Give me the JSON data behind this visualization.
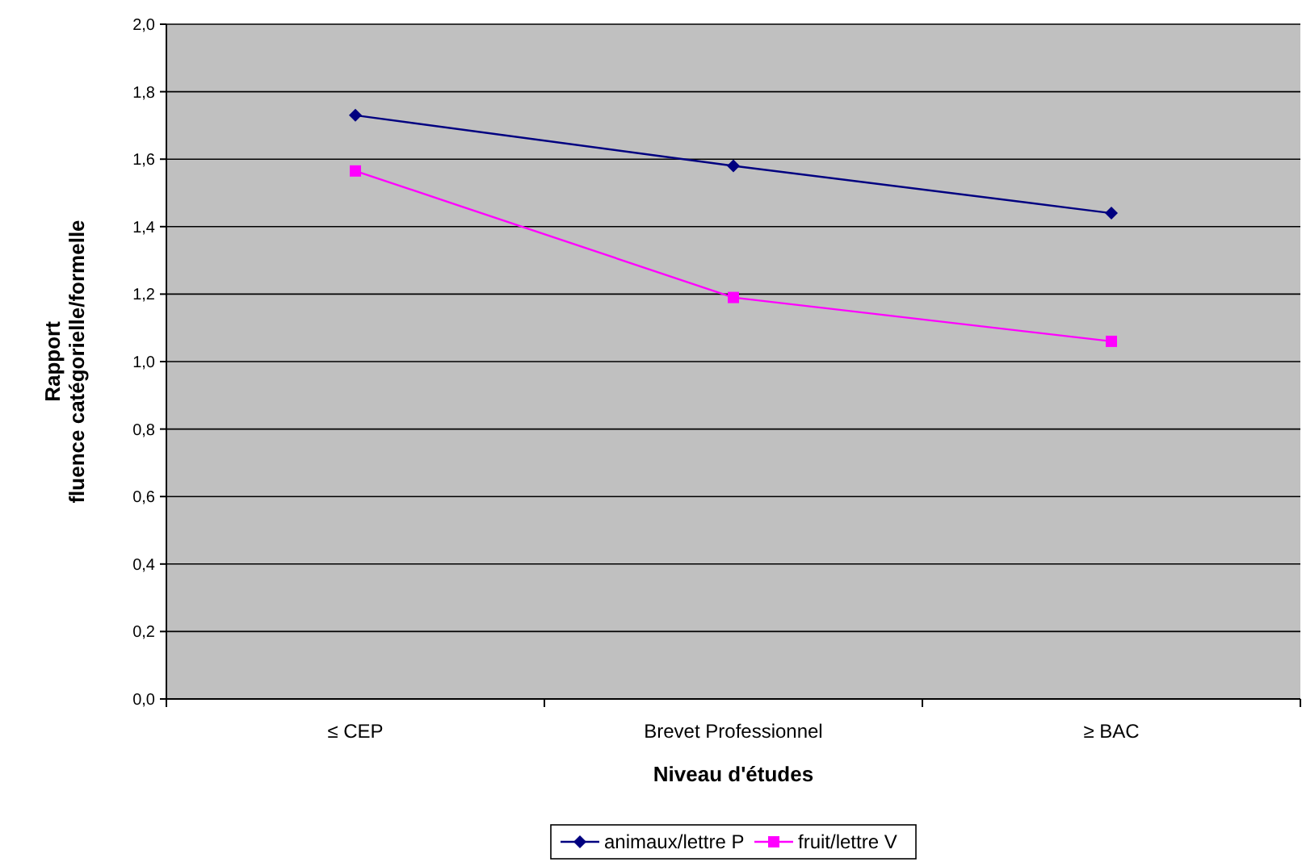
{
  "chart_data": {
    "type": "line",
    "xlabel": "Niveau d'études",
    "ylabel": "Rapport\nfluence catégorielle/formelle",
    "categories": [
      "≤ CEP",
      "Brevet Professionnel",
      "≥ BAC"
    ],
    "series": [
      {
        "name": "animaux/lettre P",
        "color": "#000080",
        "values": [
          1.73,
          1.58,
          1.44
        ],
        "marker": "diamond"
      },
      {
        "name": "fruit/lettre V",
        "color": "#ff00ff",
        "values": [
          1.565,
          1.19,
          1.06
        ],
        "marker": "square"
      }
    ],
    "ylim": [
      0,
      2
    ],
    "yticks": [
      {
        "value": 0,
        "label": "0,0"
      },
      {
        "value": 0.2,
        "label": "0,2"
      },
      {
        "value": 0.4,
        "label": "0,4"
      },
      {
        "value": 0.6,
        "label": "0,6"
      },
      {
        "value": 0.8,
        "label": "0,8"
      },
      {
        "value": 1,
        "label": "1,0"
      },
      {
        "value": 1.2,
        "label": "1,2"
      },
      {
        "value": 1.4,
        "label": "1,4"
      },
      {
        "value": 1.6,
        "label": "1,6"
      },
      {
        "value": 1.8,
        "label": "1,8"
      },
      {
        "value": 2,
        "label": "2,0"
      }
    ],
    "grid": "y",
    "legend": "bottom"
  }
}
